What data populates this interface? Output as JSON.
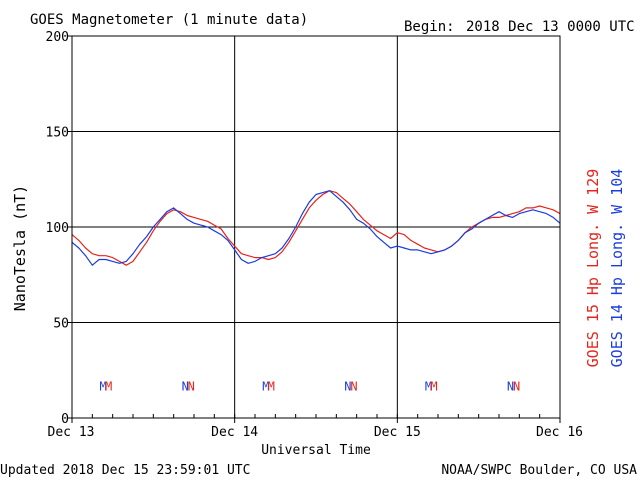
{
  "header": {
    "title": "GOES Magnetometer (1 minute data)",
    "begin_label": "Begin:",
    "begin_date": "2018 Dec 13 0000 UTC"
  },
  "footer": {
    "updated": "Updated 2018 Dec 15 23:59:01 UTC",
    "credit": "NOAA/SWPC Boulder, CO USA"
  },
  "legend": {
    "goes15": "GOES 15 Hp  Long. W 129",
    "goes14": "GOES 14 Hp  Long. W 104"
  },
  "colors": {
    "goes15": "#e8231a",
    "goes14": "#1a3ce0",
    "axis": "#000000"
  },
  "chart_data": {
    "type": "line",
    "title": "GOES Magnetometer (1 minute data)",
    "xlabel": "Universal Time",
    "ylabel": "NanoTesla (nT)",
    "xlim": [
      0,
      72
    ],
    "ylim": [
      0,
      200
    ],
    "x_unit": "hours since 2018 Dec 13 0000 UTC",
    "x_ticks": [
      {
        "x": 0,
        "label": "Dec 13"
      },
      {
        "x": 24,
        "label": "Dec 14"
      },
      {
        "x": 48,
        "label": "Dec 15"
      },
      {
        "x": 72,
        "label": "Dec 16"
      }
    ],
    "y_ticks": [
      0,
      50,
      100,
      150,
      200
    ],
    "grid": true,
    "series": [
      {
        "name": "GOES 15 Hp  Long. W 129",
        "color": "#e8231a",
        "x": [
          0,
          1,
          2,
          3,
          4,
          5,
          6,
          7,
          8,
          9,
          10,
          11,
          12,
          13,
          14,
          15,
          16,
          17,
          18,
          19,
          20,
          21,
          22,
          23,
          24,
          25,
          26,
          27,
          28,
          29,
          30,
          31,
          32,
          33,
          34,
          35,
          36,
          37,
          38,
          39,
          40,
          41,
          42,
          43,
          44,
          45,
          46,
          47,
          48,
          49,
          50,
          51,
          52,
          53,
          54,
          55,
          56,
          57,
          58,
          59,
          60,
          61,
          62,
          63,
          64,
          65,
          66,
          67,
          68,
          69,
          70,
          71,
          72
        ],
        "values": [
          96,
          93,
          89,
          86,
          85,
          85,
          84,
          82,
          80,
          82,
          87,
          92,
          98,
          103,
          107,
          109,
          108,
          106,
          105,
          104,
          103,
          101,
          99,
          94,
          90,
          86,
          85,
          84,
          84,
          83,
          84,
          87,
          92,
          98,
          104,
          110,
          114,
          117,
          119,
          118,
          115,
          112,
          108,
          104,
          101,
          98,
          96,
          94,
          97,
          96,
          93,
          91,
          89,
          88,
          87,
          88,
          90,
          93,
          97,
          100,
          102,
          104,
          105,
          105,
          106,
          107,
          108,
          110,
          110,
          111,
          110,
          109,
          107
        ]
      },
      {
        "name": "GOES 14 Hp  Long. W 104",
        "color": "#1a3ce0",
        "x": [
          0,
          1,
          2,
          3,
          4,
          5,
          6,
          7,
          8,
          9,
          10,
          11,
          12,
          13,
          14,
          15,
          16,
          17,
          18,
          19,
          20,
          21,
          22,
          23,
          24,
          25,
          26,
          27,
          28,
          29,
          30,
          31,
          32,
          33,
          34,
          35,
          36,
          37,
          38,
          39,
          40,
          41,
          42,
          43,
          44,
          45,
          46,
          47,
          48,
          49,
          50,
          51,
          52,
          53,
          54,
          55,
          56,
          57,
          58,
          59,
          60,
          61,
          62,
          63,
          64,
          65,
          66,
          67,
          68,
          69,
          70,
          71,
          72
        ],
        "values": [
          92,
          89,
          85,
          80,
          83,
          83,
          82,
          81,
          82,
          86,
          91,
          95,
          100,
          104,
          108,
          110,
          107,
          104,
          102,
          101,
          100,
          98,
          96,
          93,
          88,
          83,
          81,
          82,
          84,
          85,
          86,
          89,
          94,
          100,
          107,
          113,
          117,
          118,
          119,
          116,
          113,
          109,
          104,
          102,
          99,
          95,
          92,
          89,
          90,
          89,
          88,
          88,
          87,
          86,
          87,
          88,
          90,
          93,
          97,
          99,
          102,
          104,
          106,
          108,
          106,
          105,
          107,
          108,
          109,
          108,
          107,
          105,
          102
        ]
      }
    ],
    "markers": [
      {
        "x": 4.6,
        "label": "M",
        "series": "GOES 14 Hp  Long. W 104"
      },
      {
        "x": 5.4,
        "label": "M",
        "series": "GOES 15 Hp  Long. W 129"
      },
      {
        "x": 16.7,
        "label": "N",
        "series": "GOES 14 Hp  Long. W 104"
      },
      {
        "x": 17.6,
        "label": "N",
        "series": "GOES 15 Hp  Long. W 129"
      },
      {
        "x": 28.6,
        "label": "M",
        "series": "GOES 14 Hp  Long. W 104"
      },
      {
        "x": 29.4,
        "label": "M",
        "series": "GOES 15 Hp  Long. W 129"
      },
      {
        "x": 40.7,
        "label": "N",
        "series": "GOES 14 Hp  Long. W 104"
      },
      {
        "x": 41.6,
        "label": "N",
        "series": "GOES 15 Hp  Long. W 129"
      },
      {
        "x": 52.6,
        "label": "M",
        "series": "GOES 14 Hp  Long. W 104"
      },
      {
        "x": 53.4,
        "label": "M",
        "series": "GOES 15 Hp  Long. W 129"
      },
      {
        "x": 64.7,
        "label": "N",
        "series": "GOES 14 Hp  Long. W 104"
      },
      {
        "x": 65.6,
        "label": "N",
        "series": "GOES 15 Hp  Long. W 129"
      }
    ],
    "marker_level": 17
  }
}
